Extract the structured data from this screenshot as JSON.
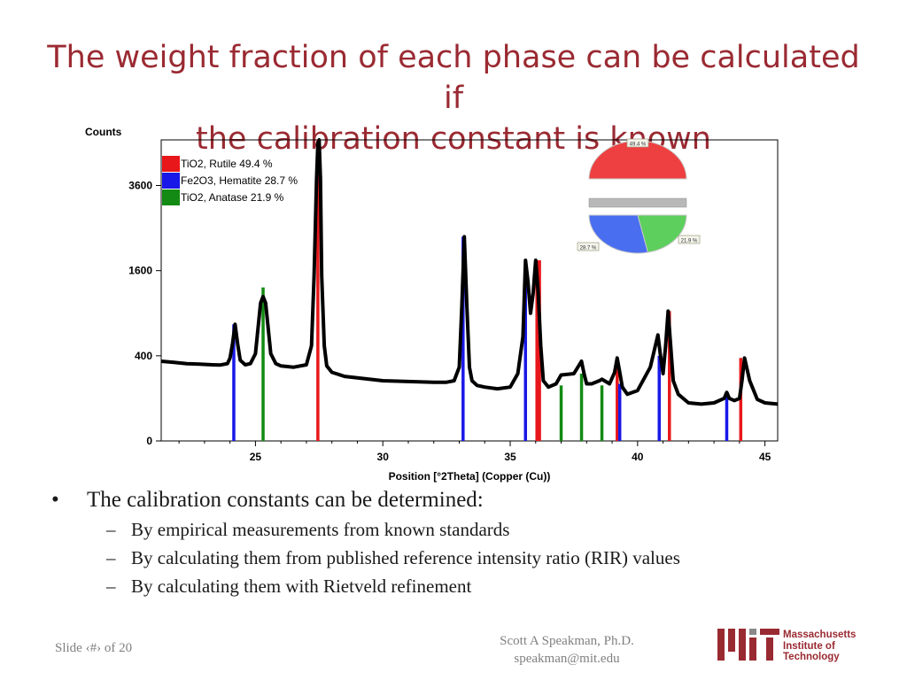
{
  "slide": {
    "title_line1": "The weight fraction of each phase can be calculated if",
    "title_line2": "the calibration constant is known",
    "bullet_main": "The calibration constants can be determined:",
    "bullet_glyph": "•",
    "dash_glyph": "–",
    "sub_bullets": [
      "By empirical measurements from known standards",
      "By calculating them from published reference intensity ratio (RIR) values",
      "By calculating them with Rietveld refinement"
    ],
    "footer_left": "Slide ‹#› of 20",
    "footer_author": "Scott A Speakman, Ph.D.",
    "footer_email": "speakman@mit.edu",
    "logo_line1": "Massachusetts",
    "logo_line2": "Institute of",
    "logo_line3": "Technology",
    "accent_color": "#9a2a32"
  },
  "chart_data": [
    {
      "type": "line",
      "title": "",
      "ylabel": "Counts",
      "xlabel": "Position [°2Theta] (Copper (Cu))",
      "x_ticks": [
        25,
        30,
        35,
        40,
        45
      ],
      "y_ticks": [
        0,
        400,
        1600,
        3600
      ],
      "y_scale": "sqrt",
      "xlim": [
        21.3,
        45.5
      ],
      "ylim": [
        0,
        5000
      ],
      "grid": false,
      "legend_position": "top-left",
      "series": [
        {
          "name": "",
          "color": "#000000",
          "x": [
            21.3,
            21.8,
            22.3,
            22.8,
            23.3,
            23.6,
            23.9,
            24.0,
            24.1,
            24.2,
            24.3,
            24.4,
            24.6,
            24.8,
            25.0,
            25.1,
            25.2,
            25.3,
            25.4,
            25.5,
            25.6,
            25.8,
            26.0,
            26.5,
            27.0,
            27.2,
            27.3,
            27.4,
            27.45,
            27.5,
            27.55,
            27.6,
            27.7,
            27.8,
            28.0,
            28.5,
            29.0,
            30.0,
            31.0,
            32.0,
            32.5,
            32.8,
            33.0,
            33.1,
            33.2,
            33.3,
            33.4,
            33.5,
            33.7,
            34.0,
            34.5,
            35.0,
            35.3,
            35.5,
            35.6,
            35.7,
            35.8,
            35.9,
            36.0,
            36.1,
            36.2,
            36.3,
            36.5,
            36.8,
            37.0,
            37.5,
            37.8,
            37.9,
            38.0,
            38.2,
            38.5,
            38.6,
            38.7,
            38.9,
            39.1,
            39.2,
            39.3,
            39.4,
            39.6,
            40.0,
            40.5,
            40.8,
            40.9,
            41.0,
            41.1,
            41.2,
            41.3,
            41.4,
            41.6,
            42.0,
            42.5,
            43.0,
            43.4,
            43.5,
            43.6,
            43.8,
            44.0,
            44.1,
            44.2,
            44.4,
            44.7,
            45.0,
            45.5
          ],
          "y": [
            350,
            340,
            330,
            325,
            320,
            318,
            330,
            380,
            520,
            750,
            520,
            360,
            320,
            330,
            420,
            700,
            1050,
            1150,
            1050,
            700,
            420,
            330,
            310,
            300,
            320,
            500,
            1500,
            3800,
            4900,
            5000,
            3800,
            1500,
            500,
            310,
            260,
            230,
            220,
            200,
            195,
            190,
            190,
            200,
            300,
            1000,
            2300,
            1000,
            300,
            200,
            170,
            160,
            150,
            160,
            250,
            600,
            1800,
            1400,
            900,
            1200,
            1800,
            1200,
            500,
            200,
            160,
            180,
            240,
            250,
            350,
            250,
            180,
            180,
            200,
            210,
            200,
            180,
            260,
            380,
            260,
            160,
            120,
            140,
            300,
            620,
            400,
            250,
            500,
            930,
            500,
            200,
            120,
            80,
            75,
            80,
            100,
            130,
            100,
            90,
            100,
            200,
            380,
            200,
            95,
            80,
            75
          ]
        }
      ],
      "phases": [
        {
          "name": "TiO2, Rutile 49.4 %",
          "color": "#e8171a",
          "x": [
            27.45,
            36.05,
            36.15,
            39.2,
            41.25,
            44.05
          ],
          "y": [
            5000,
            1800,
            1800,
            370,
            930,
            380
          ]
        },
        {
          "name": "Fe2O3, Hematite 28.7 %",
          "color": "#1818e8",
          "x": [
            24.15,
            33.15,
            35.6,
            39.3,
            40.85,
            43.5
          ],
          "y": [
            750,
            2300,
            1800,
            180,
            400,
            130
          ]
        },
        {
          "name": "TiO2, Anatase 21.9 %",
          "color": "#138a13",
          "x": [
            25.3,
            37.0,
            37.8,
            38.6
          ],
          "y": [
            1300,
            170,
            250,
            170
          ]
        }
      ]
    },
    {
      "type": "pie",
      "categories": [
        "49.4 %",
        "28.7 %",
        "21.9 %"
      ],
      "values": [
        49.4,
        28.7,
        21.9
      ],
      "colors": [
        "#ee4040",
        "#4a6ef0",
        "#5ccf5c"
      ]
    }
  ]
}
